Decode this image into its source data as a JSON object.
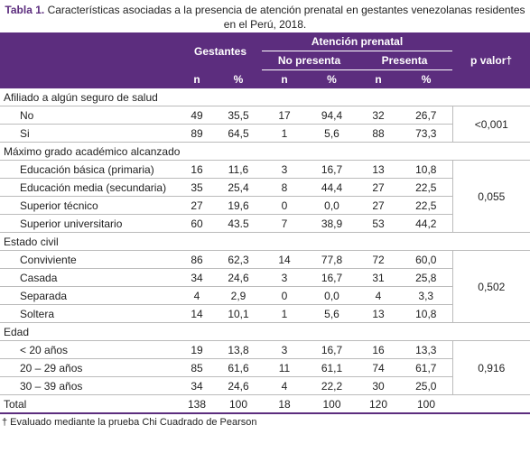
{
  "caption": {
    "label": "Tabla 1.",
    "text": "Características asociadas a la presencia de atención prenatal en gestantes venezolanas residentes en el Perú, 2018."
  },
  "header": {
    "gestantes": "Gestantes",
    "atencion": "Atención prenatal",
    "no_presenta": "No presenta",
    "presenta": "Presenta",
    "p_valor": "p valor†",
    "subcols": [
      "n",
      "%",
      "n",
      "%",
      "n",
      "%"
    ]
  },
  "sections": [
    {
      "title": "Afiliado a algún seguro de salud",
      "p": "<0,001",
      "rows": [
        {
          "label": "No",
          "values": [
            "49",
            "35,5",
            "17",
            "94,4",
            "32",
            "26,7"
          ]
        },
        {
          "label": "Si",
          "values": [
            "89",
            "64,5",
            "1",
            "5,6",
            "88",
            "73,3"
          ]
        }
      ]
    },
    {
      "title": "Máximo grado académico alcanzado",
      "p": "0,055",
      "rows": [
        {
          "label": "Educación básica (primaria)",
          "values": [
            "16",
            "11,6",
            "3",
            "16,7",
            "13",
            "10,8"
          ]
        },
        {
          "label": "Educación media (secundaria)",
          "values": [
            "35",
            "25,4",
            "8",
            "44,4",
            "27",
            "22,5"
          ]
        },
        {
          "label": "Superior técnico",
          "values": [
            "27",
            "19,6",
            "0",
            "0,0",
            "27",
            "22,5"
          ]
        },
        {
          "label": "Superior universitario",
          "values": [
            "60",
            "43.5",
            "7",
            "38,9",
            "53",
            "44,2"
          ]
        }
      ]
    },
    {
      "title": "Estado civil",
      "p": "0,502",
      "rows": [
        {
          "label": "Conviviente",
          "values": [
            "86",
            "62,3",
            "14",
            "77,8",
            "72",
            "60,0"
          ]
        },
        {
          "label": "Casada",
          "values": [
            "34",
            "24,6",
            "3",
            "16,7",
            "31",
            "25,8"
          ]
        },
        {
          "label": "Separada",
          "values": [
            "4",
            "2,9",
            "0",
            "0,0",
            "4",
            "3,3"
          ]
        },
        {
          "label": "Soltera",
          "values": [
            "14",
            "10,1",
            "1",
            "5,6",
            "13",
            "10,8"
          ]
        }
      ]
    },
    {
      "title": "Edad",
      "p": "0,916",
      "rows": [
        {
          "label": "< 20 años",
          "values": [
            "19",
            "13,8",
            "3",
            "16,7",
            "16",
            "13,3"
          ]
        },
        {
          "label": "20 – 29 años",
          "values": [
            "85",
            "61,6",
            "11",
            "61,1",
            "74",
            "61,7"
          ]
        },
        {
          "label": "30 – 39 años",
          "values": [
            "34",
            "24,6",
            "4",
            "22,2",
            "30",
            "25,0"
          ]
        }
      ]
    }
  ],
  "total": {
    "label": "Total",
    "values": [
      "138",
      "100",
      "18",
      "100",
      "120",
      "100"
    ]
  },
  "footnote": "† Evaluado mediante la prueba Chi Cuadrado de Pearson"
}
